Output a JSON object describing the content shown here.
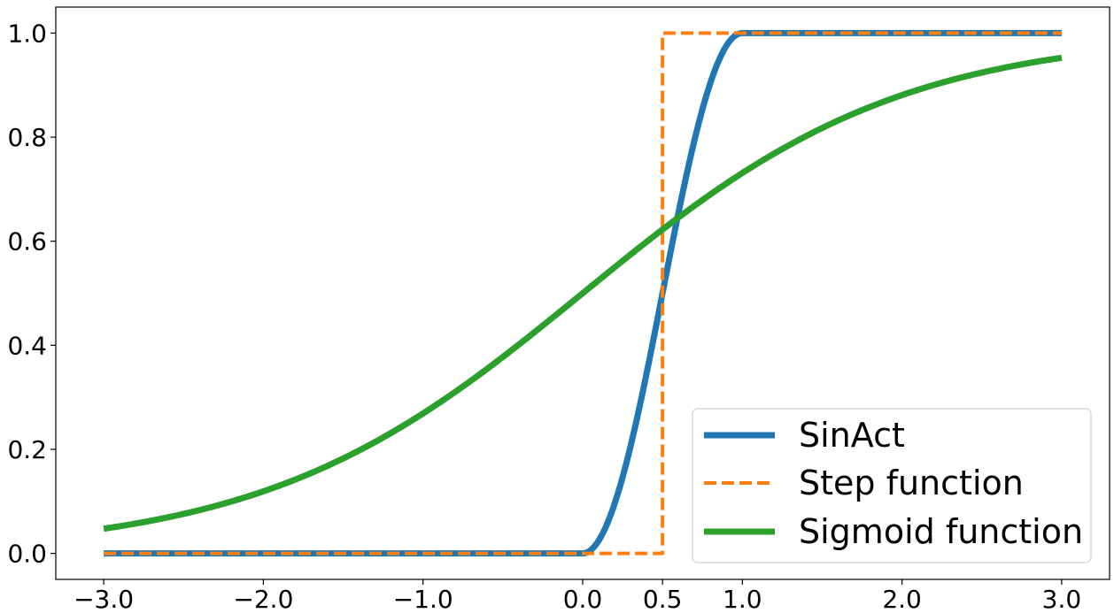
{
  "chart_data": {
    "type": "line",
    "x_range": [
      -3.0,
      3.0
    ],
    "xlim": [
      -3.3,
      3.3
    ],
    "ylim": [
      -0.05,
      1.05
    ],
    "xticks": [
      -3.0,
      -2.0,
      -1.0,
      0.0,
      0.5,
      1.0,
      2.0,
      3.0
    ],
    "xtick_labels": [
      "−3.0",
      "−2.0",
      "−1.0",
      "0.0",
      "0.5",
      "1.0",
      "2.0",
      "3.0"
    ],
    "yticks": [
      0.0,
      0.2,
      0.4,
      0.6,
      0.8,
      1.0
    ],
    "ytick_labels": [
      "0.0",
      "0.2",
      "0.4",
      "0.6",
      "0.8",
      "1.0"
    ],
    "grid": false,
    "legend_position": "lower-right",
    "series": [
      {
        "name": "SinAct",
        "color": "#1f77b4",
        "style": "solid",
        "x": [
          -3.0,
          0.0,
          0.1,
          0.2,
          0.3,
          0.4,
          0.5,
          0.6,
          0.7,
          0.8,
          0.9,
          1.0,
          3.0
        ],
        "y": [
          0.0,
          0.0,
          0.02,
          0.09,
          0.2,
          0.35,
          0.5,
          0.65,
          0.8,
          0.91,
          0.98,
          1.0,
          1.0
        ]
      },
      {
        "name": "Step function",
        "color": "#ff7f0e",
        "style": "dashed",
        "x": [
          -3.0,
          0.5,
          0.5,
          3.0
        ],
        "y": [
          0.0,
          0.0,
          1.0,
          1.0
        ]
      },
      {
        "name": "Sigmoid function",
        "color": "#2ca02c",
        "style": "solid",
        "x": [
          -3.0,
          -2.5,
          -2.0,
          -1.5,
          -1.0,
          -0.5,
          0.0,
          0.5,
          1.0,
          1.5,
          2.0,
          2.5,
          3.0
        ],
        "y": [
          0.047,
          0.076,
          0.119,
          0.182,
          0.269,
          0.378,
          0.5,
          0.622,
          0.731,
          0.818,
          0.881,
          0.924,
          0.953
        ]
      }
    ]
  }
}
